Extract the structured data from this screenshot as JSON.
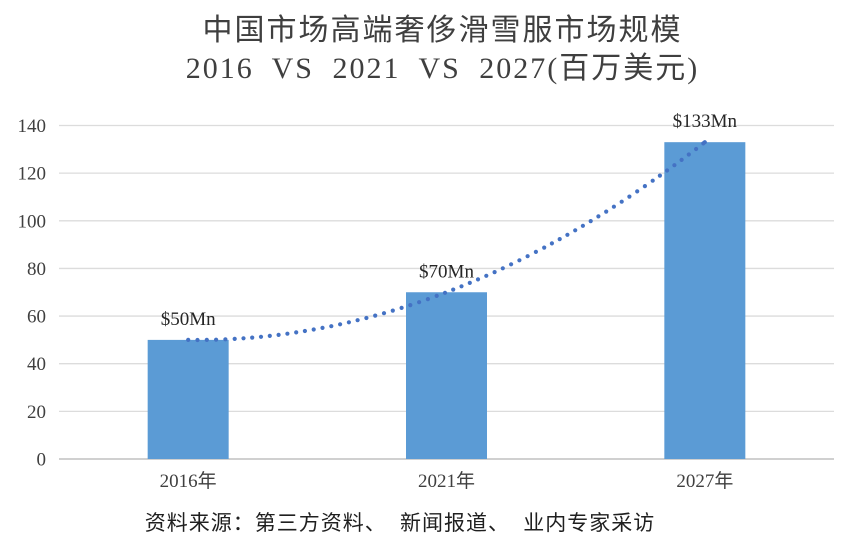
{
  "title": {
    "line1": "中国市场高端奢侈滑雪服市场规模",
    "line2": "2016 VS 2021 VS 2027(百万美元)"
  },
  "source_note": "资料来源：第三方资料、 新闻报道、 业内专家采访",
  "chart_data": {
    "type": "bar",
    "title": "中国市场高端奢侈滑雪服市场规模 2016 VS 2021 VS 2027(百万美元)",
    "categories": [
      "2016年",
      "2021年",
      "2027年"
    ],
    "values": [
      50,
      70,
      133
    ],
    "data_labels": [
      "$50Mn",
      "$70Mn",
      "$133Mn"
    ],
    "xlabel": "",
    "ylabel": "",
    "ylim": [
      0,
      140
    ],
    "yticks": [
      0,
      20,
      40,
      60,
      80,
      100,
      120,
      140
    ],
    "grid": true,
    "legend": "none",
    "trendline": {
      "style": "dotted",
      "shape": "smooth-curve-through-bar-tops",
      "values": [
        50,
        70,
        133
      ]
    },
    "colors": {
      "bar": "#5B9BD5",
      "trendline_dot": "#4472C4",
      "gridline": "#DCDCDC",
      "axis_line": "#D0D0D0",
      "tick_text": "#3f3f3f",
      "value_text": "#262626",
      "background": "#ffffff"
    }
  }
}
